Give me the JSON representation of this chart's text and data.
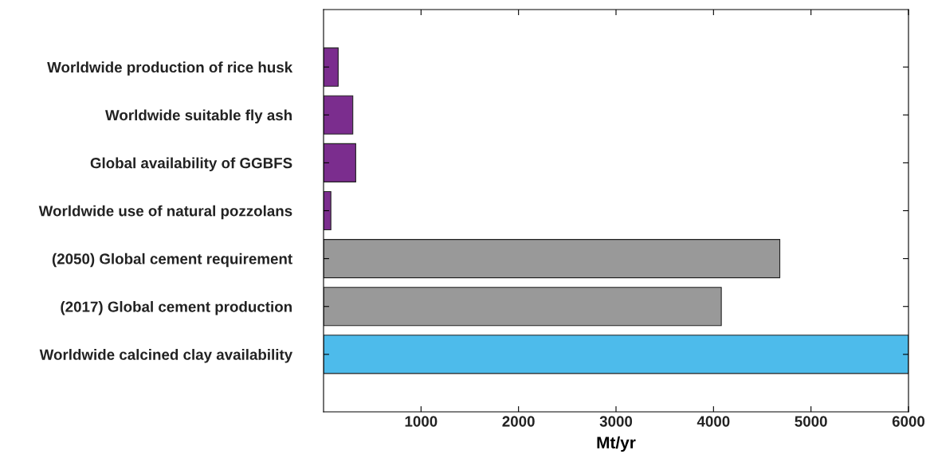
{
  "chart_data": {
    "type": "bar",
    "orientation": "horizontal",
    "xlabel": "Mt/yr",
    "categories": [
      "Worldwide production of rice husk",
      "Worldwide suitable fly ash",
      "Global availability of GGBFS",
      "Worldwide use of natural pozzolans",
      "(2050) Global cement requirement",
      "(2017) Global cement production",
      "Worldwide calcined clay availability"
    ],
    "values": [
      150,
      300,
      330,
      75,
      4680,
      4080,
      6000
    ],
    "colors": [
      "#7b2d8e",
      "#7b2d8e",
      "#7b2d8e",
      "#7b2d8e",
      "#999999",
      "#999999",
      "#4dbbeb"
    ],
    "xlim": [
      0,
      6000
    ],
    "xticks": [
      1000,
      2000,
      3000,
      4000,
      5000,
      6000
    ],
    "grid": false,
    "legend": false
  }
}
